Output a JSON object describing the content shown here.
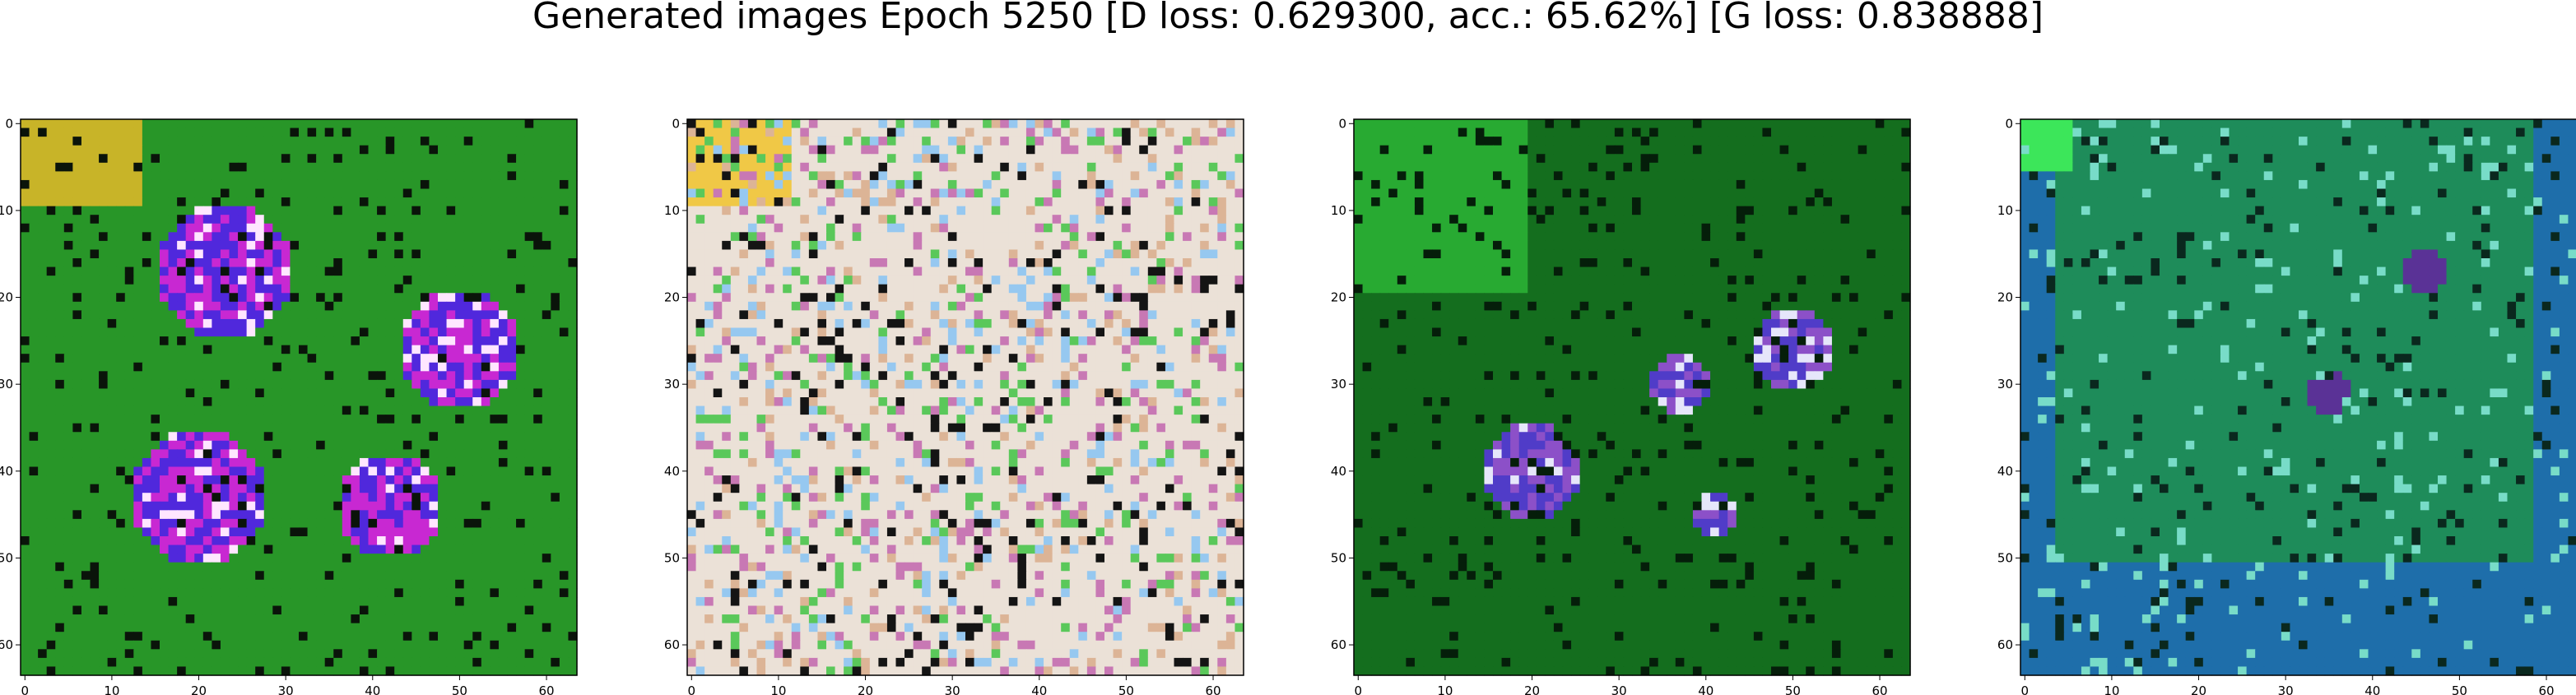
{
  "figure": {
    "title": "Generated images Epoch 5250 [D loss: 0.629300, acc.: 65.62%] [G loss: 0.838888]"
  },
  "axes": {
    "x_ticks": [
      "0",
      "10",
      "20",
      "30",
      "40",
      "50",
      "60"
    ],
    "y_ticks": [
      "0",
      "10",
      "20",
      "30",
      "40",
      "50",
      "60"
    ],
    "range": [
      0,
      64
    ]
  },
  "panels": [
    {
      "name": "generated-image-1",
      "palette": "green with magenta and blue blobs"
    },
    {
      "name": "generated-image-2",
      "palette": "pale white with colored streaks"
    },
    {
      "name": "generated-image-3",
      "palette": "dark green with blue/magenta spots"
    },
    {
      "name": "generated-image-4",
      "palette": "teal-green with blue border"
    }
  ]
}
